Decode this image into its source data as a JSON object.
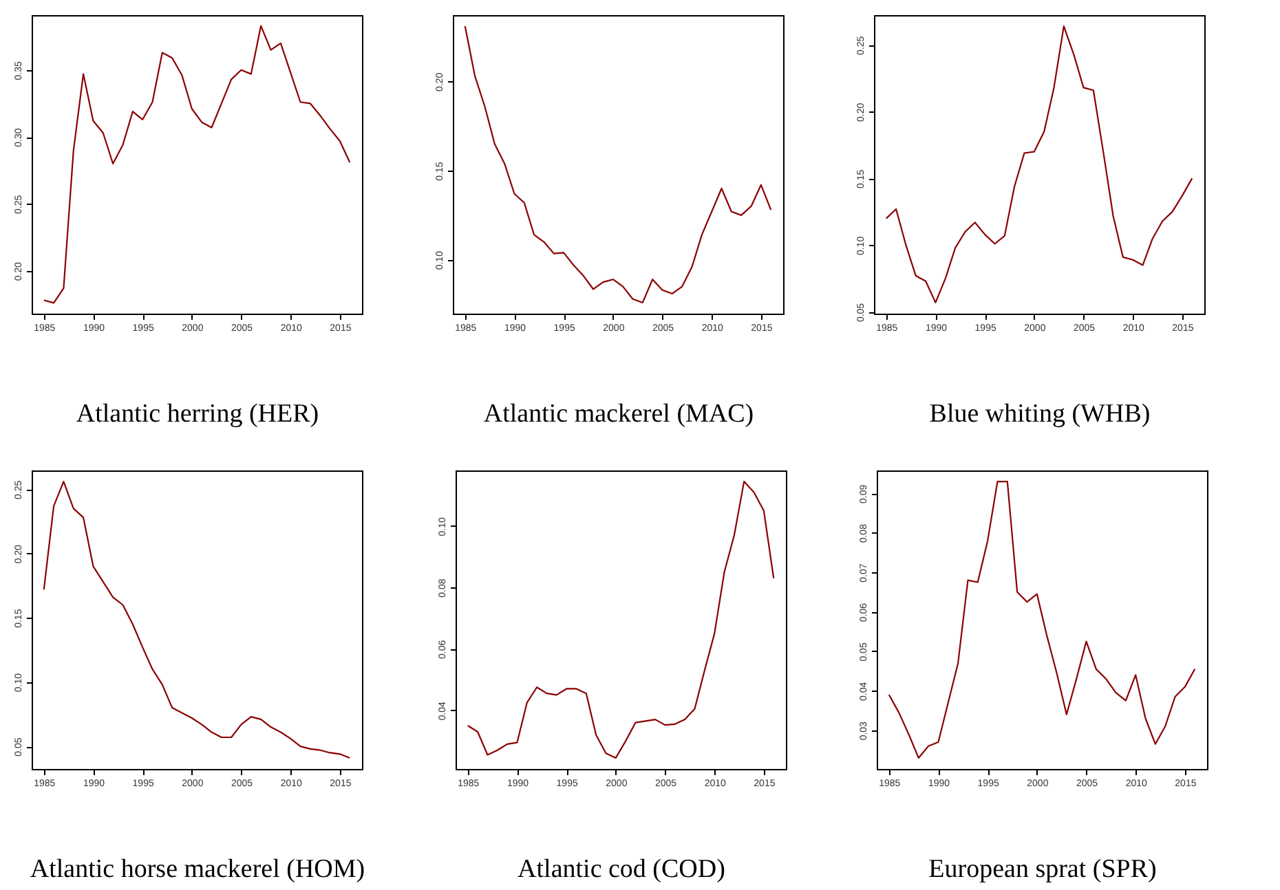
{
  "chart_data": [
    {
      "type": "line",
      "xlabel": "Atlantic herring (HER)",
      "color": "#8b0000",
      "grid": false,
      "x": [
        1985,
        1986,
        1987,
        1988,
        1989,
        1990,
        1991,
        1992,
        1993,
        1994,
        1995,
        1996,
        1997,
        1998,
        1999,
        2000,
        2001,
        2002,
        2003,
        2004,
        2005,
        2006,
        2007,
        2008,
        2009,
        2010,
        2011,
        2012,
        2013,
        2014,
        2015,
        2016
      ],
      "values": [
        0.178,
        0.176,
        0.187,
        0.29,
        0.347,
        0.312,
        0.303,
        0.28,
        0.294,
        0.319,
        0.313,
        0.326,
        0.363,
        0.359,
        0.346,
        0.321,
        0.311,
        0.307,
        0.325,
        0.343,
        0.35,
        0.347,
        0.383,
        0.365,
        0.37,
        0.348,
        0.326,
        0.325,
        0.316,
        0.306,
        0.297,
        0.281
      ],
      "xlim": [
        1983.76,
        2017.24
      ],
      "xticks": [
        1985,
        1990,
        1995,
        2000,
        2005,
        2010,
        2015
      ],
      "ylim": [
        0.168,
        0.391
      ],
      "yticks": [
        {
          "value": 0.2,
          "label": "0.20"
        },
        {
          "value": 0.25,
          "label": "0.25"
        },
        {
          "value": 0.3,
          "label": "0.30"
        },
        {
          "value": 0.35,
          "label": "0.35"
        }
      ]
    },
    {
      "type": "line",
      "xlabel": "Atlantic mackerel (MAC)",
      "color": "#8b0000",
      "grid": false,
      "x": [
        1985,
        1986,
        1987,
        1988,
        1989,
        1990,
        1991,
        1992,
        1993,
        1994,
        1995,
        1996,
        1997,
        1998,
        1999,
        2000,
        2001,
        2002,
        2003,
        2004,
        2005,
        2006,
        2007,
        2008,
        2009,
        2010,
        2011,
        2012,
        2013,
        2014,
        2015,
        2016
      ],
      "values": [
        0.231,
        0.203,
        0.186,
        0.165,
        0.154,
        0.137,
        0.132,
        0.114,
        0.11,
        0.1035,
        0.104,
        0.097,
        0.091,
        0.0835,
        0.0875,
        0.089,
        0.085,
        0.078,
        0.076,
        0.089,
        0.083,
        0.081,
        0.085,
        0.096,
        0.114,
        0.127,
        0.14,
        0.127,
        0.125,
        0.13,
        0.142,
        0.128
      ],
      "xlim": [
        1983.76,
        2017.24
      ],
      "xticks": [
        1985,
        1990,
        1995,
        2000,
        2005,
        2010,
        2015
      ],
      "ylim": [
        0.0698,
        0.2372
      ],
      "yticks": [
        {
          "value": 0.1,
          "label": "0.10"
        },
        {
          "value": 0.15,
          "label": "0.15"
        },
        {
          "value": 0.2,
          "label": "0.20"
        }
      ]
    },
    {
      "type": "line",
      "xlabel": "Blue whiting (WHB)",
      "color": "#8b0000",
      "grid": false,
      "x": [
        1985,
        1986,
        1987,
        1988,
        1989,
        1990,
        1991,
        1992,
        1993,
        1994,
        1995,
        1996,
        1997,
        1998,
        1999,
        2000,
        2001,
        2002,
        2003,
        2004,
        2005,
        2006,
        2007,
        2008,
        2009,
        2010,
        2011,
        2012,
        2013,
        2014,
        2015,
        2016
      ],
      "values": [
        0.12,
        0.127,
        0.1,
        0.077,
        0.073,
        0.057,
        0.075,
        0.098,
        0.11,
        0.117,
        0.108,
        0.101,
        0.107,
        0.144,
        0.169,
        0.17,
        0.185,
        0.218,
        0.264,
        0.243,
        0.218,
        0.216,
        0.17,
        0.122,
        0.091,
        0.089,
        0.085,
        0.105,
        0.118,
        0.125,
        0.137,
        0.15
      ],
      "xlim": [
        1983.76,
        2017.24
      ],
      "xticks": [
        1985,
        1990,
        1995,
        2000,
        2005,
        2010,
        2015
      ],
      "ylim": [
        0.0487,
        0.2723
      ],
      "yticks": [
        {
          "value": 0.05,
          "label": "0.05"
        },
        {
          "value": 0.1,
          "label": "0.10"
        },
        {
          "value": 0.15,
          "label": "0.15"
        },
        {
          "value": 0.2,
          "label": "0.20"
        },
        {
          "value": 0.25,
          "label": "0.25"
        }
      ]
    },
    {
      "type": "line",
      "xlabel": "Atlantic horse mackerel (HOM)",
      "color": "#8b0000",
      "grid": false,
      "x": [
        1985,
        1986,
        1987,
        1988,
        1989,
        1990,
        1991,
        1992,
        1993,
        1994,
        1995,
        1996,
        1997,
        1998,
        1999,
        2000,
        2001,
        2002,
        2003,
        2004,
        2005,
        2006,
        2007,
        2008,
        2009,
        2010,
        2011,
        2012,
        2013,
        2014,
        2015,
        2016
      ],
      "values": [
        0.172,
        0.237,
        0.256,
        0.235,
        0.228,
        0.19,
        0.178,
        0.166,
        0.16,
        0.145,
        0.127,
        0.11,
        0.098,
        0.08,
        0.076,
        0.072,
        0.067,
        0.061,
        0.057,
        0.057,
        0.067,
        0.073,
        0.071,
        0.065,
        0.061,
        0.056,
        0.05,
        0.048,
        0.047,
        0.045,
        0.044,
        0.041
      ],
      "xlim": [
        1983.76,
        2017.24
      ],
      "xticks": [
        1985,
        1990,
        1995,
        2000,
        2005,
        2010,
        2015
      ],
      "ylim": [
        0.0324,
        0.2646
      ],
      "yticks": [
        {
          "value": 0.05,
          "label": "0.05"
        },
        {
          "value": 0.1,
          "label": "0.10"
        },
        {
          "value": 0.15,
          "label": "0.15"
        },
        {
          "value": 0.2,
          "label": "0.20"
        },
        {
          "value": 0.25,
          "label": "0.25"
        }
      ]
    },
    {
      "type": "line",
      "xlabel": "Atlantic cod (COD)",
      "color": "#8b0000",
      "grid": false,
      "x": [
        1985,
        1986,
        1987,
        1988,
        1989,
        1990,
        1991,
        1992,
        1993,
        1994,
        1995,
        1996,
        1997,
        1998,
        1999,
        2000,
        2001,
        2002,
        2003,
        2004,
        2005,
        2006,
        2007,
        2008,
        2009,
        2010,
        2011,
        2012,
        2013,
        2014,
        2015,
        2016
      ],
      "values": [
        0.035,
        0.033,
        0.0255,
        0.027,
        0.029,
        0.0295,
        0.0425,
        0.0475,
        0.0455,
        0.045,
        0.047,
        0.047,
        0.0455,
        0.032,
        0.026,
        0.0245,
        0.03,
        0.036,
        0.0365,
        0.037,
        0.0352,
        0.0355,
        0.037,
        0.0405,
        0.053,
        0.065,
        0.085,
        0.097,
        0.1145,
        0.111,
        0.105,
        0.083
      ],
      "xlim": [
        1983.76,
        2017.24
      ],
      "xticks": [
        1985,
        1990,
        1995,
        2000,
        2005,
        2010,
        2015
      ],
      "ylim": [
        0.0209,
        0.1181
      ],
      "yticks": [
        {
          "value": 0.04,
          "label": "0.04"
        },
        {
          "value": 0.06,
          "label": "0.06"
        },
        {
          "value": 0.08,
          "label": "0.08"
        },
        {
          "value": 0.1,
          "label": "0.10"
        }
      ]
    },
    {
      "type": "line",
      "xlabel": "European sprat (SPR)",
      "color": "#8b0000",
      "grid": false,
      "x": [
        1985,
        1986,
        1987,
        1988,
        1989,
        1990,
        1991,
        1992,
        1993,
        1994,
        1995,
        1996,
        1997,
        1998,
        1999,
        2000,
        2001,
        2002,
        2003,
        2004,
        2005,
        2006,
        2007,
        2008,
        2009,
        2010,
        2011,
        2012,
        2013,
        2014,
        2015,
        2016
      ],
      "values": [
        0.039,
        0.0345,
        0.029,
        0.023,
        0.026,
        0.027,
        0.037,
        0.047,
        0.068,
        0.0675,
        0.078,
        0.093,
        0.093,
        0.065,
        0.0625,
        0.0645,
        0.054,
        0.0445,
        0.034,
        0.043,
        0.0525,
        0.0455,
        0.043,
        0.0395,
        0.0375,
        0.044,
        0.033,
        0.0265,
        0.031,
        0.0385,
        0.041,
        0.0455
      ],
      "xlim": [
        1983.76,
        2017.24
      ],
      "xticks": [
        1985,
        1990,
        1995,
        2000,
        2005,
        2010,
        2015
      ],
      "ylim": [
        0.0202,
        0.0958
      ],
      "yticks": [
        {
          "value": 0.03,
          "label": "0.03"
        },
        {
          "value": 0.04,
          "label": "0.04"
        },
        {
          "value": 0.05,
          "label": "0.05"
        },
        {
          "value": 0.06,
          "label": "0.06"
        },
        {
          "value": 0.07,
          "label": "0.07"
        },
        {
          "value": 0.08,
          "label": "0.08"
        },
        {
          "value": 0.09,
          "label": "0.09"
        }
      ]
    }
  ]
}
